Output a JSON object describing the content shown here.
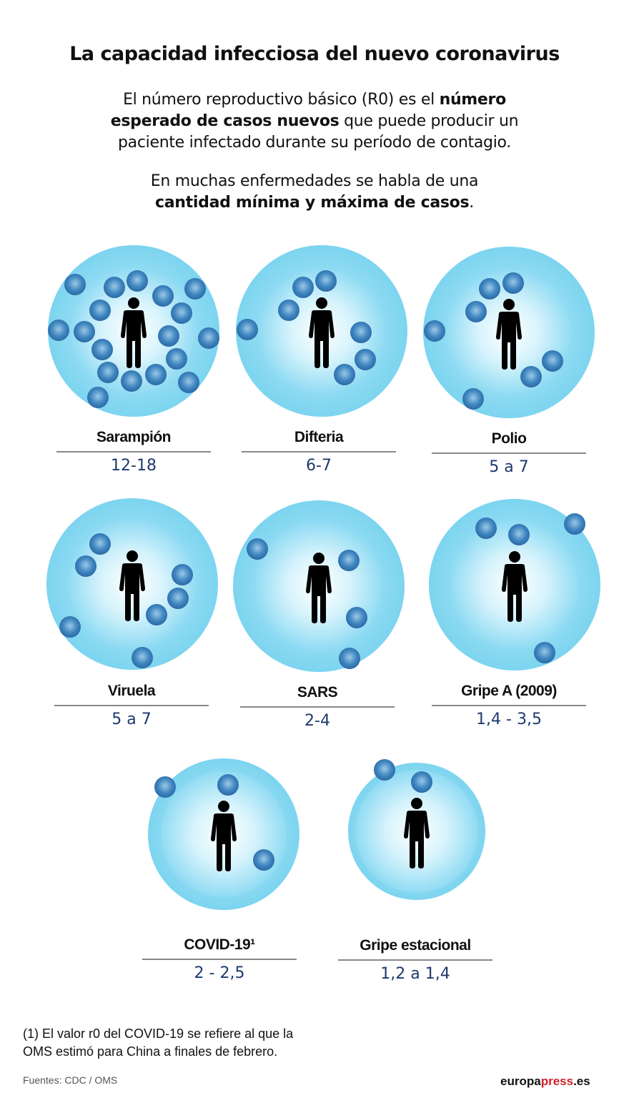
{
  "title": "La capacidad infecciosa del nuevo coronavirus",
  "intro": {
    "p1_a": "El número reproductivo básico (R0) es el ",
    "p1_b": "número esperado de casos nuevos",
    "p1_c": " que puede producir un paciente infectado durante su período de contagio.",
    "p2_a": "En muchas enfermedades se habla de una ",
    "p2_b": "cantidad mínima y máxima de casos",
    "p2_c": "."
  },
  "diseases": [
    {
      "name": "Sarampión",
      "r0": "12-18",
      "dots": 18
    },
    {
      "name": "Difteria",
      "r0": "6-7",
      "dots": 7
    },
    {
      "name": "Polio",
      "r0": "5 a 7",
      "dots": 7
    },
    {
      "name": "Viruela",
      "r0": "5 a 7",
      "dots": 7
    },
    {
      "name": "SARS",
      "r0": "2-4",
      "dots": 4
    },
    {
      "name": "Gripe A (2009)",
      "r0": "1,4 - 3,5",
      "dots": 4
    },
    {
      "name": "COVID-19¹",
      "r0": "2 - 2,5",
      "dots": 3
    },
    {
      "name": "Gripe estacional",
      "r0": "1,2 a 1,4",
      "dots": 2
    }
  ],
  "footnote": {
    "line1": "(1) El valor r0 del COVID-19 se refiere al que la",
    "line2": "OMS estimó para China a finales de febrero."
  },
  "sources": "Fuentes: CDC / OMS",
  "logo": {
    "a": "europa",
    "b": "press",
    "c": ".es"
  },
  "colors": {
    "value_text": "#1e3a6e",
    "logo_accent": "#d2232a",
    "circle": "#5ac8eb",
    "dot": "#1b4f8c"
  }
}
